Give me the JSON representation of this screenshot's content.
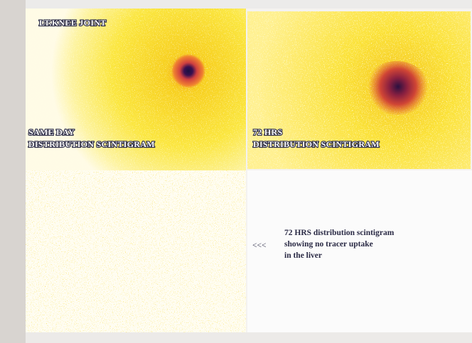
{
  "panels": [
    {
      "title": "LT.KNEE JOINT",
      "caption": [
        "SAME DAY",
        "DISTRIBUTION SCINTIGRAM"
      ]
    },
    {
      "caption": [
        "72 HRS",
        "DISTRIBUTION SCINTIGRAM"
      ]
    },
    {
      "arrow": "<<<",
      "caption": [
        "72 HRS distribution scintigram",
        "showing no tracer uptake",
        "in the liver"
      ]
    }
  ]
}
